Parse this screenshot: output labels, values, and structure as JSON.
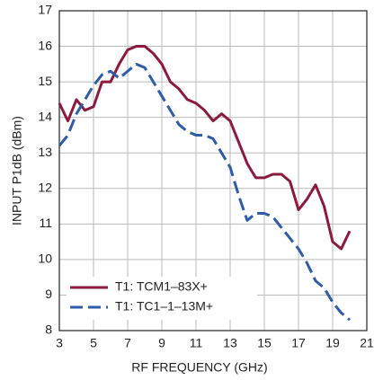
{
  "chart_data": {
    "type": "line",
    "x_label": "RF FREQUENCY (GHz)",
    "y_label": "INPUT P1dB (dBm)",
    "x": [
      3,
      3.5,
      4,
      4.5,
      5,
      5.5,
      6,
      6.5,
      7,
      7.5,
      8,
      8.5,
      9,
      9.5,
      10,
      10.5,
      11,
      11.5,
      12,
      12.5,
      13,
      13.5,
      14,
      14.5,
      15,
      15.5,
      16,
      16.5,
      17,
      17.5,
      18,
      18.5,
      19,
      19.5,
      20
    ],
    "series": [
      {
        "name": "T1: TCM1–83X+",
        "color": "#8b1a3c",
        "dash": false,
        "values": [
          14.4,
          13.9,
          14.5,
          14.2,
          14.3,
          15.0,
          15.0,
          15.5,
          15.9,
          16.0,
          16.0,
          15.8,
          15.5,
          15.0,
          14.8,
          14.5,
          14.4,
          14.2,
          13.9,
          14.1,
          13.9,
          13.3,
          12.7,
          12.3,
          12.3,
          12.4,
          12.4,
          12.2,
          11.4,
          11.7,
          12.1,
          11.5,
          10.5,
          10.3,
          10.8
        ]
      },
      {
        "name": "T1: TC1–1–13M+",
        "color": "#2f5ca8",
        "dash": true,
        "values": [
          13.2,
          13.5,
          14.1,
          14.5,
          14.9,
          15.2,
          15.3,
          15.1,
          15.3,
          15.5,
          15.4,
          15.0,
          14.6,
          14.2,
          13.8,
          13.6,
          13.5,
          13.5,
          13.4,
          13.0,
          12.6,
          11.8,
          11.1,
          11.3,
          11.3,
          11.2,
          10.9,
          10.6,
          10.3,
          9.9,
          9.4,
          9.2,
          8.8,
          8.5,
          8.3
        ]
      }
    ],
    "xlim": [
      3,
      21
    ],
    "xticks": [
      3,
      5,
      7,
      9,
      11,
      13,
      15,
      17,
      19,
      21
    ],
    "ylim": [
      8,
      17
    ],
    "yticks": [
      8,
      9,
      10,
      11,
      12,
      13,
      14,
      15,
      16,
      17
    ],
    "grid": true,
    "legend": "lower-left"
  }
}
